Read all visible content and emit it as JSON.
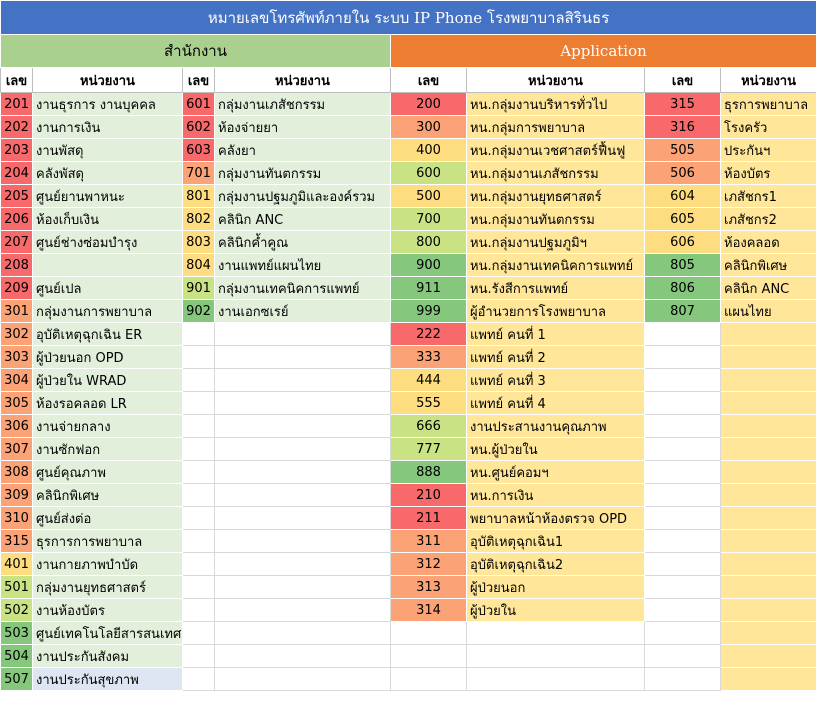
{
  "title": "หมายเลขโทรศัพท์ภายใน ระบบ IP Phone โรงพยาบาลสิรินธร",
  "sections": {
    "left": "สำนักงาน",
    "right": "Application"
  },
  "headers": {
    "num": "เลข",
    "unit": "หน่วยงาน"
  },
  "colors": {
    "red": "#f8696b",
    "orange": "#fba276",
    "yellow": "#fedd81",
    "light_green": "#c9e384",
    "green": "#85c87d",
    "pale_blue": "#dde6f2"
  },
  "rows": [
    {
      "a_num": "201",
      "a_name": "งานธุรการ งานบุคคล",
      "a_c": "red",
      "b_num": "601",
      "b_name": "กลุ่มงานเภสัชกรรม",
      "b_c": "red",
      "c_num": "200",
      "c_name": "หน.กลุ่มงานบริหารทั่วไป",
      "c_c": "red",
      "d_num": "315",
      "d_name": "ธุรการพยาบาล",
      "d_c": "red"
    },
    {
      "a_num": "202",
      "a_name": "งานการเงิน",
      "a_c": "red",
      "b_num": "602",
      "b_name": "ห้องจ่ายยา",
      "b_c": "red",
      "c_num": "300",
      "c_name": "หน.กลุ่มการพยาบาล",
      "c_c": "orange",
      "d_num": "316",
      "d_name": "โรงครัว",
      "d_c": "red"
    },
    {
      "a_num": "203",
      "a_name": "งานพัสดุ",
      "a_c": "red",
      "b_num": "603",
      "b_name": "คลังยา",
      "b_c": "red",
      "c_num": "400",
      "c_name": "หน.กลุ่มงานเวชศาสตร์ฟื้นฟู",
      "c_c": "yellow",
      "d_num": "505",
      "d_name": "ประกันฯ",
      "d_c": "orange"
    },
    {
      "a_num": "204",
      "a_name": "คลังพัสดุ",
      "a_c": "red",
      "b_num": "701",
      "b_name": "กลุ่มงานทันตกรรม",
      "b_c": "orange",
      "c_num": "600",
      "c_name": "หน.กลุ่มงานเภสัชกรรม",
      "c_c": "light_green",
      "d_num": "506",
      "d_name": "ห้องบัตร",
      "d_c": "orange"
    },
    {
      "a_num": "205",
      "a_name": "ศูนย์ยานพาหนะ",
      "a_c": "red",
      "b_num": "801",
      "b_name": "กลุ่มงานปฐมภูมิและองค์รวม",
      "b_c": "yellow",
      "c_num": "500",
      "c_name": "หน.กลุ่มงานยุทธศาสตร์",
      "c_c": "yellow",
      "d_num": "604",
      "d_name": "เภสัชกร1",
      "d_c": "yellow"
    },
    {
      "a_num": "206",
      "a_name": "ห้องเก็บเงิน",
      "a_c": "red",
      "b_num": "802",
      "b_name": "คลินิก ANC",
      "b_c": "yellow",
      "c_num": "700",
      "c_name": "หน.กลุ่มงานทันตกรรม",
      "c_c": "light_green",
      "d_num": "605",
      "d_name": "เภสัชกร2",
      "d_c": "yellow"
    },
    {
      "a_num": "207",
      "a_name": "ศูนย์ช่างซ่อมบำรุง",
      "a_c": "red",
      "b_num": "803",
      "b_name": "คลินิกค้ำคูณ",
      "b_c": "yellow",
      "c_num": "800",
      "c_name": "หน.กลุ่มงานปฐมภูมิฯ",
      "c_c": "light_green",
      "d_num": "606",
      "d_name": "ห้องคลอด",
      "d_c": "yellow"
    },
    {
      "a_num": "208",
      "a_name": "",
      "a_c": "red",
      "b_num": "804",
      "b_name": "งานแพทย์แผนไทย",
      "b_c": "yellow",
      "c_num": "900",
      "c_name": "หน.กลุ่มงานเทคนิคการแพทย์",
      "c_c": "green",
      "d_num": "805",
      "d_name": "คลินิกพิเศษ",
      "d_c": "green"
    },
    {
      "a_num": "209",
      "a_name": "ศูนย์เปล",
      "a_c": "red",
      "b_num": "901",
      "b_name": "กลุ่มงานเทคนิคการแพทย์",
      "b_c": "light_green",
      "c_num": "911",
      "c_name": "หน.รังสีการแพทย์",
      "c_c": "green",
      "d_num": "806",
      "d_name": "คลินิก ANC",
      "d_c": "green"
    },
    {
      "a_num": "301",
      "a_name": "กลุ่มงานการพยาบาล",
      "a_c": "orange",
      "b_num": "902",
      "b_name": "งานเอกซเรย์",
      "b_c": "green",
      "c_num": "999",
      "c_name": "ผู้อำนวยการโรงพยาบาล",
      "c_c": "green",
      "d_num": "807",
      "d_name": "แผนไทย",
      "d_c": "green"
    },
    {
      "a_num": "302",
      "a_name": "อุบัติเหตุฉุกเฉิน ER",
      "a_c": "orange",
      "c_num": "222",
      "c_name": "แพทย์ คนที่ 1",
      "c_c": "red"
    },
    {
      "a_num": "303",
      "a_name": "ผู้ป่วยนอก OPD",
      "a_c": "orange",
      "c_num": "333",
      "c_name": "แพทย์ คนที่ 2",
      "c_c": "orange"
    },
    {
      "a_num": "304",
      "a_name": "ผู้ป่วยใน WRAD",
      "a_c": "orange",
      "c_num": "444",
      "c_name": "แพทย์ คนที่ 3",
      "c_c": "yellow"
    },
    {
      "a_num": "305",
      "a_name": "ห้องรอคลอด LR",
      "a_c": "orange",
      "c_num": "555",
      "c_name": "แพทย์ คนที่ 4",
      "c_c": "yellow"
    },
    {
      "a_num": "306",
      "a_name": "งานจ่ายกลาง",
      "a_c": "orange",
      "c_num": "666",
      "c_name": "งานประสานงานคุณภาพ",
      "c_c": "light_green"
    },
    {
      "a_num": "307",
      "a_name": "งานซักฟอก",
      "a_c": "orange",
      "c_num": "777",
      "c_name": "หน.ผู้ป่วยใน",
      "c_c": "light_green"
    },
    {
      "a_num": "308",
      "a_name": "ศูนย์คุณภาพ",
      "a_c": "orange",
      "c_num": "888",
      "c_name": "หน.ศูนย์คอมฯ",
      "c_c": "green"
    },
    {
      "a_num": "309",
      "a_name": "คลินิกพิเศษ",
      "a_c": "orange",
      "c_num": "210",
      "c_name": "หน.การเงิน",
      "c_c": "red"
    },
    {
      "a_num": "310",
      "a_name": "ศูนย์ส่งต่อ",
      "a_c": "orange",
      "c_num": "211",
      "c_name": "พยาบาลหน้าห้องตรวจ OPD",
      "c_c": "red"
    },
    {
      "a_num": "315",
      "a_name": "ธุรการการพยาบาล",
      "a_c": "orange",
      "c_num": "311",
      "c_name": "อุบัติเหตุฉุกเฉิน1",
      "c_c": "orange"
    },
    {
      "a_num": "401",
      "a_name": "งานกายภาพบำบัด",
      "a_c": "yellow",
      "c_num": "312",
      "c_name": "อุบัติเหตุฉุกเฉิน2",
      "c_c": "orange"
    },
    {
      "a_num": "501",
      "a_name": "กลุ่มงานยุทธศาสตร์",
      "a_c": "light_green",
      "c_num": "313",
      "c_name": "ผู้ป่วยนอก",
      "c_c": "orange"
    },
    {
      "a_num": "502",
      "a_name": "งานห้องบัตร",
      "a_c": "light_green",
      "c_num": "314",
      "c_name": "ผู้ป่วยใน",
      "c_c": "orange"
    },
    {
      "a_num": "503",
      "a_name": "ศูนย์เทคโนโลยีสารสนเทศ",
      "a_c": "green"
    },
    {
      "a_num": "504",
      "a_name": "งานประกันสังคม",
      "a_c": "green"
    },
    {
      "a_num": "507",
      "a_name": "งานประกันสุขภาพ",
      "a_c": "green",
      "a_name_c": "pale_blue"
    }
  ]
}
